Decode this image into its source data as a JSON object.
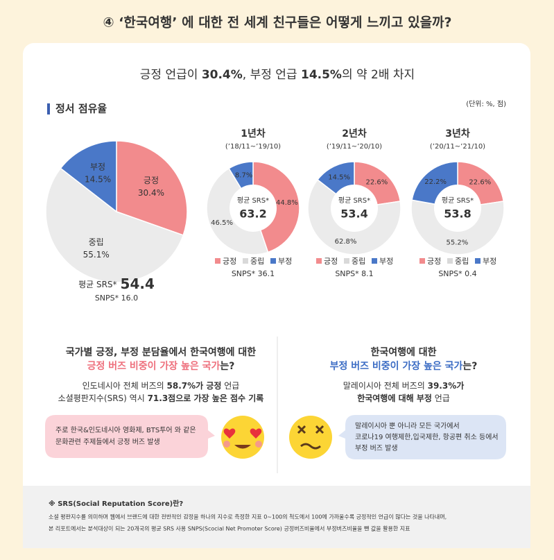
{
  "title": "④ ‘한국여행’ 에 대한 전 세계 친구들은 어떻게 느끼고 있을까?",
  "headline": [
    "긍정 언급이 ",
    "30.4%",
    ", 부정 언급 ",
    "14.5%",
    "의 약 2배 차지"
  ],
  "section_title": "정서 점유율",
  "unit": "(단위: %, 점)",
  "chart_data": [
    {
      "type": "pie",
      "categories": [
        "긍정",
        "중립",
        "부정"
      ],
      "values": [
        30.4,
        55.1,
        14.5
      ],
      "value_labels": [
        "30.4%",
        "55.1%",
        "14.5%"
      ],
      "colors": [
        "#f28b8d",
        "#ebebeb",
        "#4a78c8"
      ],
      "center_label": "평균 SRS*",
      "srs": 54.4,
      "snps": "SNPS*  16.0"
    },
    {
      "type": "pie",
      "title": "1년차",
      "subtitle": "(’18/11~’19/10)",
      "categories": [
        "긍정",
        "중립",
        "부정"
      ],
      "values": [
        44.8,
        46.5,
        8.7
      ],
      "value_labels": [
        "44.8%",
        "46.5%",
        "8.7%"
      ],
      "colors": [
        "#f28b8d",
        "#ebebeb",
        "#4a78c8"
      ],
      "center_label": "평균 SRS*",
      "srs": 63.2,
      "snps": "SNPS*  36.1"
    },
    {
      "type": "pie",
      "title": "2년차",
      "subtitle": "(’19/11~’20/10)",
      "categories": [
        "긍정",
        "중립",
        "부정"
      ],
      "values": [
        22.6,
        62.8,
        14.5
      ],
      "value_labels": [
        "22.6%",
        "62.8%",
        "14.5%"
      ],
      "colors": [
        "#f28b8d",
        "#ebebeb",
        "#4a78c8"
      ],
      "center_label": "평균 SRS*",
      "srs": 53.4,
      "snps": "SNPS*  8.1"
    },
    {
      "type": "pie",
      "title": "3년차",
      "subtitle": "(’20/11~’21/10)",
      "categories": [
        "긍정",
        "중립",
        "부정"
      ],
      "values": [
        22.6,
        55.2,
        22.2
      ],
      "value_labels": [
        "22.6%",
        "55.2%",
        "22.2%"
      ],
      "colors": [
        "#f28b8d",
        "#ebebeb",
        "#4a78c8"
      ],
      "center_label": "평균 SRS*",
      "srs": 53.8,
      "snps": "SNPS*  0.4"
    }
  ],
  "left": {
    "heading": [
      "국가별 긍정, 부정 분담율에서 한국여행에 대한",
      "긍정 버즈 비중이 가장 높은 국가",
      "는?"
    ],
    "body": [
      "인도네시아 전체 버즈의 ",
      "58.7%가 긍정",
      " 언급",
      "소셜평판지수(SRS) 역시 ",
      "71.3점으로 가장 높은 점수 기록"
    ],
    "bubble": [
      "주로 한국&인도네시아 영화제, BTS투어 와 같은",
      "문화관련 주제들에서 긍정 버즈 발생"
    ]
  },
  "right": {
    "heading": [
      "한국여행에 대한",
      "부정 버즈 비중이 가장 높은 국가",
      "는?"
    ],
    "body": [
      "말레이시아 전체 버즈의 ",
      "39.3%가",
      "한국여행에 대해 부정",
      " 언급"
    ],
    "bubble": [
      "말레이시아 뿐 아니라 모든 국가에서",
      "코로나19 여행제한,입국제한, 항공편 취소 등에서",
      "부정 버즈 발생"
    ]
  },
  "footnote": [
    "※ SRS(Social Reputation Score)란?",
    "소셜 평판지수를 의미하며 웹에서 브랜드에 대한 전반적인 감정을 하나의 지수로 측정한 지표 0~100의 척도에서 100에 가까울수록 긍정적인 언급이 많다는 것을 나타내며,",
    "본 리포트에서는 분석대상이 되는 20개국의 평균 SRS 사용 SNPS(Scocial Net Promoter Score) 긍정버즈비율에서 부정버즈비율을 뺀 값을 활용한 지표"
  ]
}
